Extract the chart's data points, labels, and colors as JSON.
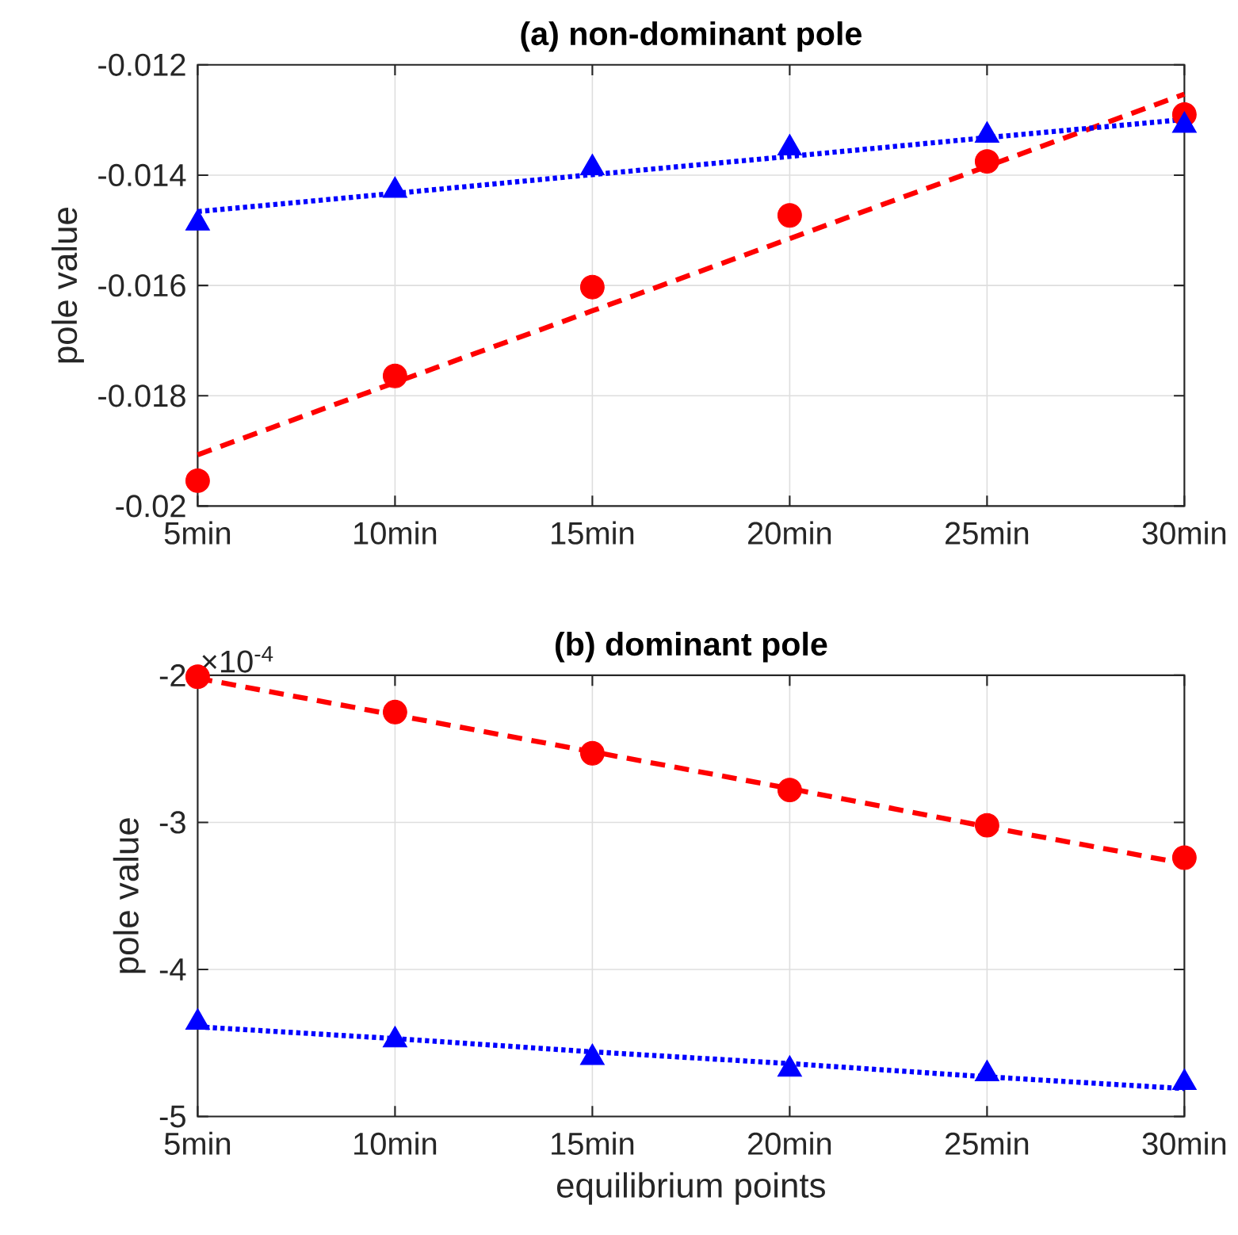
{
  "chart_data": [
    {
      "type": "scatter",
      "title": "(a) non-dominant pole",
      "ylabel": "pole value",
      "categories": [
        "5min",
        "10min",
        "15min",
        "20min",
        "25min",
        "30min"
      ],
      "ylim": [
        -0.02,
        -0.012
      ],
      "yticks": [
        -0.02,
        -0.018,
        -0.016,
        -0.014,
        -0.012
      ],
      "grid": true,
      "series": [
        {
          "color": "#ff0000",
          "marker": "circle",
          "values": [
            -0.01954,
            -0.01764,
            -0.01603,
            -0.01473,
            -0.01375,
            -0.0129
          ]
        },
        {
          "type": "line",
          "color": "#ff0000",
          "line_style": "dashed",
          "values": [
            -0.01907,
            -0.01776,
            -0.01646,
            -0.01515,
            -0.01384,
            -0.01253
          ]
        },
        {
          "color": "#0000ff",
          "marker": "triangle",
          "values": [
            -0.01487,
            -0.01428,
            -0.01387,
            -0.01351,
            -0.01328,
            -0.0131
          ]
        },
        {
          "type": "line",
          "color": "#0000ff",
          "line_style": "dotted",
          "values": [
            -0.01466,
            -0.01433,
            -0.01399,
            -0.01366,
            -0.01332,
            -0.01299
          ]
        }
      ]
    },
    {
      "type": "scatter",
      "title": "(b) dominant pole",
      "xlabel": "equilibrium points",
      "ylabel": "pole value",
      "annotations": [
        "×10$^{-4}$"
      ],
      "categories": [
        "5min",
        "10min",
        "15min",
        "20min",
        "25min",
        "30min"
      ],
      "ylim": [
        -5,
        -2
      ],
      "yticks": [
        -5,
        -4,
        -3,
        -2
      ],
      "grid": true,
      "series": [
        {
          "color": "#ff0000",
          "marker": "circle",
          "values": [
            -2.01,
            -2.25,
            -2.53,
            -2.78,
            -3.02,
            -3.24
          ]
        },
        {
          "type": "line",
          "color": "#ff0000",
          "line_style": "dashed",
          "values": [
            -2.02,
            -2.27,
            -2.52,
            -2.77,
            -3.03,
            -3.28
          ]
        },
        {
          "color": "#0000ff",
          "marker": "triangle",
          "values": [
            -4.36,
            -4.48,
            -4.6,
            -4.68,
            -4.71,
            -4.77
          ]
        },
        {
          "type": "line",
          "color": "#0000ff",
          "line_style": "dotted",
          "values": [
            -4.39,
            -4.47,
            -4.56,
            -4.64,
            -4.73,
            -4.81
          ]
        }
      ]
    }
  ]
}
